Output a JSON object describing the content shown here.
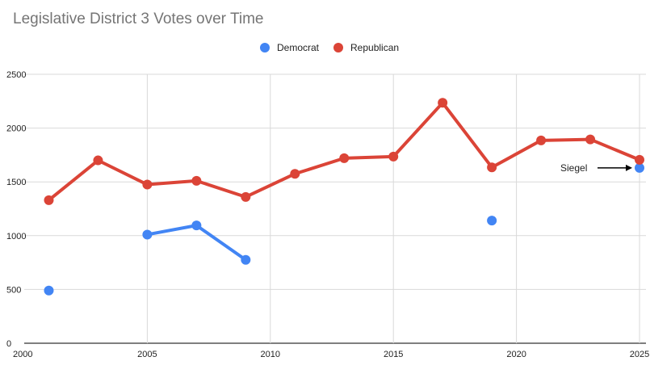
{
  "chart_data": {
    "type": "line",
    "title": "Legislative District 3 Votes over Time",
    "xlabel": "",
    "ylabel": "",
    "xlim": [
      2000,
      2025
    ],
    "ylim": [
      0,
      2500
    ],
    "x_ticks": [
      "2000",
      "2005",
      "2010",
      "2015",
      "2020",
      "2025"
    ],
    "y_ticks": [
      "0",
      "500",
      "1000",
      "1500",
      "2000",
      "2500"
    ],
    "grid": true,
    "legend_position": "top",
    "series": [
      {
        "name": "Democrat",
        "color": "#4285f4",
        "points": [
          {
            "x": 2001,
            "y": 490
          },
          {
            "x": 2005,
            "y": 1010
          },
          {
            "x": 2007,
            "y": 1095
          },
          {
            "x": 2009,
            "y": 775
          },
          {
            "x": 2019,
            "y": 1140
          },
          {
            "x": 2025,
            "y": 1630
          }
        ],
        "segments": [
          [
            0
          ],
          [
            1,
            2,
            3
          ],
          [
            4
          ],
          [
            5
          ]
        ]
      },
      {
        "name": "Republican",
        "color": "#db4437",
        "points": [
          {
            "x": 2001,
            "y": 1330
          },
          {
            "x": 2003,
            "y": 1700
          },
          {
            "x": 2005,
            "y": 1475
          },
          {
            "x": 2007,
            "y": 1510
          },
          {
            "x": 2009,
            "y": 1360
          },
          {
            "x": 2011,
            "y": 1575
          },
          {
            "x": 2013,
            "y": 1720
          },
          {
            "x": 2015,
            "y": 1735
          },
          {
            "x": 2017,
            "y": 2235
          },
          {
            "x": 2019,
            "y": 1635
          },
          {
            "x": 2021,
            "y": 1885
          },
          {
            "x": 2023,
            "y": 1895
          },
          {
            "x": 2025,
            "y": 1705
          }
        ],
        "segments": [
          [
            0,
            1,
            2,
            3,
            4,
            5,
            6,
            7,
            8,
            9,
            10,
            11,
            12
          ]
        ]
      }
    ],
    "annotations": [
      {
        "text": "Siegel",
        "x": 2025,
        "y": 1630
      }
    ]
  }
}
